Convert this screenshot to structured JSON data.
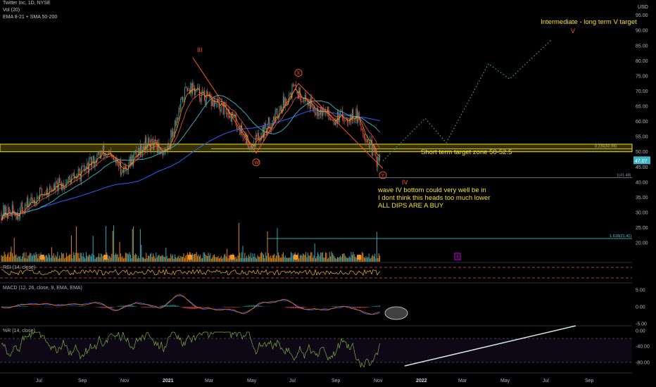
{
  "header": {
    "title": "Twitter Inc, 1D, NYSE",
    "vol": "Vol (20)",
    "ema": "EMA 8-21 + SMA 50-200",
    "currency": "USD"
  },
  "indicators": {
    "rsi": "RSI (14, close)",
    "macd": "MACD (12, 26, close, 9, EMA, EMA)",
    "wr": "%R (14, close)"
  },
  "annotations": {
    "target_title": "Intermediate - long term V target",
    "target_v": "V",
    "zone_label": "Short term target zone 50-52.5",
    "note_line1": "wave IV bottom could very well be in",
    "note_line2": "I dont think this heads too much lower",
    "note_line3": "ALL DIPS ARE A BUY",
    "wave_iii": "III",
    "wave_iv": "IV",
    "wave_w": "W",
    "wave_x": "X",
    "wave_y": "Y",
    "fib_0236": "0.236(50.99)",
    "fib_1": "1(41.48)",
    "fib_1618": "1.618(21.41)",
    "event_e": "E"
  },
  "price_badge": "47.07",
  "colors": {
    "up": "#26a69a",
    "down": "#ef5350",
    "zone": "#f5e11e",
    "wave": "#ff5722",
    "target_path": "#4caf50",
    "sma200": "#2962ff",
    "sma50": "#3fb6c8",
    "ema21": "#ef5350",
    "ema8": "#ff9800"
  },
  "chart_data": {
    "type": "candlestick",
    "title": "Twitter Inc, 1D, NYSE",
    "x_axis_labels": [
      "Jul",
      "Sep",
      "Nov",
      "2021",
      "Mar",
      "May",
      "Jul",
      "Sep",
      "Nov",
      "2022",
      "Mar",
      "May",
      "Jul",
      "Sep"
    ],
    "y_axis_price_labels": [
      "95.00",
      "90.00",
      "85.00",
      "80.00",
      "75.00",
      "70.00",
      "65.00",
      "60.00",
      "55.00",
      "50.00",
      "45.00",
      "40.00",
      "35.00",
      "30.00",
      "25.00",
      "20.00"
    ],
    "y_range": [
      17,
      97
    ],
    "price_path": [
      {
        "month": "2020-06",
        "price": 30
      },
      {
        "month": "2020-07",
        "price": 36
      },
      {
        "month": "2020-08",
        "price": 39
      },
      {
        "month": "2020-09",
        "price": 43
      },
      {
        "month": "2020-10",
        "price": 50
      },
      {
        "month": "2020-11",
        "price": 44
      },
      {
        "month": "2020-12",
        "price": 53
      },
      {
        "month": "2021-01",
        "price": 50
      },
      {
        "month": "2021-02",
        "price": 72
      },
      {
        "month": "2021-03",
        "price": 67
      },
      {
        "month": "2021-04",
        "price": 63
      },
      {
        "month": "2021-05",
        "price": 52
      },
      {
        "month": "2021-06",
        "price": 60
      },
      {
        "month": "2021-07",
        "price": 71
      },
      {
        "month": "2021-08",
        "price": 65
      },
      {
        "month": "2021-09",
        "price": 61
      },
      {
        "month": "2021-10",
        "price": 62
      },
      {
        "month": "2021-11",
        "price": 47
      }
    ],
    "last_price": 47.07,
    "target_zone": [
      50,
      52.5
    ],
    "fib_levels": [
      {
        "label": "0.236",
        "value": 50.99
      },
      {
        "label": "1",
        "value": 41.48
      },
      {
        "label": "1.618",
        "value": 21.41
      }
    ],
    "projected_path": [
      {
        "month": "2021-11",
        "price": 47
      },
      {
        "month": "2022-01",
        "price": 61
      },
      {
        "month": "2022-02",
        "price": 53
      },
      {
        "month": "2022-04",
        "price": 79
      },
      {
        "month": "2022-05",
        "price": 74
      },
      {
        "month": "2022-07",
        "price": 87
      }
    ],
    "macd_axis_labels": [
      "5.00",
      "0.00",
      "-5.00"
    ],
    "wr_axis_labels": [
      "0.00",
      "-40.00",
      "-80.00"
    ]
  }
}
